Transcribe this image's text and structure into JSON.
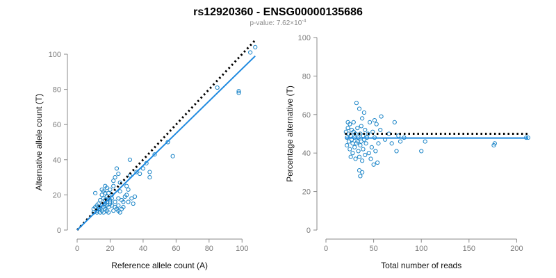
{
  "figure": {
    "title": "rs12920360 - ENSG00000135686",
    "subtitle_prefix": "p-value: 7.62×10",
    "subtitle_exponent": "-4"
  },
  "colors": {
    "points": "#1a84c7",
    "fit_line": "#1f8ae0",
    "reference_line": "#000000",
    "axis": "#8a8a8a",
    "tick_text": "#7a7a7a"
  },
  "chart_data": [
    {
      "type": "scatter",
      "name": "left",
      "xlabel": "Reference allele count (A)",
      "ylabel": "Alternative allele count (T)",
      "xlim": [
        0,
        110
      ],
      "ylim": [
        0,
        100
      ],
      "xticks": [
        0,
        20,
        40,
        60,
        80,
        100
      ],
      "yticks": [
        0,
        20,
        40,
        60,
        80,
        100
      ],
      "reference_line": {
        "style": "dotted",
        "points": [
          [
            0,
            0
          ],
          [
            108,
            108
          ]
        ]
      },
      "fit_line": {
        "style": "solid",
        "points": [
          [
            0,
            0
          ],
          [
            108,
            99
          ]
        ]
      },
      "points": [
        [
          10,
          10
        ],
        [
          10,
          12
        ],
        [
          11,
          13
        ],
        [
          11,
          21
        ],
        [
          12,
          11
        ],
        [
          12,
          14
        ],
        [
          12,
          10
        ],
        [
          13,
          13
        ],
        [
          13,
          12
        ],
        [
          13,
          15
        ],
        [
          14,
          10
        ],
        [
          14,
          12
        ],
        [
          14,
          17
        ],
        [
          15,
          11
        ],
        [
          15,
          14
        ],
        [
          15,
          20
        ],
        [
          15,
          23
        ],
        [
          16,
          10
        ],
        [
          16,
          13
        ],
        [
          16,
          18
        ],
        [
          16,
          22
        ],
        [
          17,
          12
        ],
        [
          17,
          15
        ],
        [
          17,
          17
        ],
        [
          17,
          21
        ],
        [
          17,
          25
        ],
        [
          18,
          11
        ],
        [
          18,
          14
        ],
        [
          18,
          16
        ],
        [
          18,
          19
        ],
        [
          18,
          24
        ],
        [
          19,
          10
        ],
        [
          19,
          13
        ],
        [
          19,
          18
        ],
        [
          19,
          21
        ],
        [
          20,
          15
        ],
        [
          20,
          16
        ],
        [
          20,
          17
        ],
        [
          20,
          23
        ],
        [
          21,
          14
        ],
        [
          21,
          18
        ],
        [
          21,
          20
        ],
        [
          22,
          11
        ],
        [
          22,
          25
        ],
        [
          22,
          28
        ],
        [
          23,
          13
        ],
        [
          23,
          16
        ],
        [
          23,
          30
        ],
        [
          24,
          12
        ],
        [
          24,
          35
        ],
        [
          25,
          11
        ],
        [
          25,
          14
        ],
        [
          25,
          18
        ],
        [
          25,
          32
        ],
        [
          26,
          10
        ],
        [
          26,
          22
        ],
        [
          26,
          27
        ],
        [
          27,
          12
        ],
        [
          27,
          17
        ],
        [
          28,
          13
        ],
        [
          28,
          16
        ],
        [
          29,
          19
        ],
        [
          30,
          20
        ],
        [
          30,
          25
        ],
        [
          31,
          16
        ],
        [
          31,
          23
        ],
        [
          32,
          31
        ],
        [
          32,
          40
        ],
        [
          33,
          18
        ],
        [
          34,
          15
        ],
        [
          35,
          19
        ],
        [
          36,
          33
        ],
        [
          38,
          32
        ],
        [
          40,
          35
        ],
        [
          42,
          38
        ],
        [
          44,
          30
        ],
        [
          44,
          33
        ],
        [
          47,
          43
        ],
        [
          55,
          50
        ],
        [
          58,
          42
        ],
        [
          85,
          81
        ],
        [
          98,
          78
        ],
        [
          98,
          79
        ],
        [
          105,
          101
        ],
        [
          108,
          104
        ]
      ]
    },
    {
      "type": "scatter",
      "name": "right",
      "xlabel": "Total number of reads",
      "ylabel": "Percentage alternative (T)",
      "xlim": [
        0,
        215
      ],
      "ylim": [
        0,
        100
      ],
      "xticks": [
        0,
        50,
        100,
        150,
        200
      ],
      "yticks": [
        0,
        20,
        40,
        60,
        80,
        100
      ],
      "reference_line": {
        "style": "dotted",
        "points": [
          [
            20,
            50
          ],
          [
            212,
            50
          ]
        ]
      },
      "fit_line": {
        "style": "solid",
        "points": [
          [
            20,
            47.8
          ],
          [
            212,
            47.8
          ]
        ]
      },
      "points": [
        [
          21,
          51
        ],
        [
          22,
          48
        ],
        [
          22,
          44
        ],
        [
          23,
          53
        ],
        [
          23,
          56
        ],
        [
          24,
          50
        ],
        [
          24,
          46
        ],
        [
          25,
          42
        ],
        [
          25,
          55
        ],
        [
          26,
          49
        ],
        [
          26,
          38
        ],
        [
          27,
          52
        ],
        [
          27,
          47
        ],
        [
          28,
          45
        ],
        [
          28,
          40
        ],
        [
          29,
          51
        ],
        [
          29,
          56
        ],
        [
          30,
          48
        ],
        [
          30,
          43
        ],
        [
          31,
          37
        ],
        [
          31,
          50
        ],
        [
          32,
          66
        ],
        [
          32,
          45
        ],
        [
          33,
          46
        ],
        [
          33,
          53
        ],
        [
          34,
          41
        ],
        [
          34,
          48
        ],
        [
          35,
          31
        ],
        [
          35,
          38
        ],
        [
          35,
          63
        ],
        [
          36,
          50
        ],
        [
          36,
          44
        ],
        [
          36,
          28
        ],
        [
          37,
          54
        ],
        [
          37,
          46
        ],
        [
          38,
          36
        ],
        [
          38,
          58
        ],
        [
          38,
          30
        ],
        [
          39,
          42
        ],
        [
          39,
          49
        ],
        [
          40,
          47
        ],
        [
          40,
          61
        ],
        [
          41,
          52
        ],
        [
          41,
          39
        ],
        [
          42,
          45
        ],
        [
          43,
          48
        ],
        [
          44,
          50
        ],
        [
          45,
          40
        ],
        [
          46,
          56
        ],
        [
          47,
          37
        ],
        [
          48,
          43
        ],
        [
          49,
          51
        ],
        [
          50,
          34
        ],
        [
          51,
          57
        ],
        [
          51,
          48
        ],
        [
          52,
          41
        ],
        [
          53,
          55
        ],
        [
          54,
          35
        ],
        [
          55,
          45
        ],
        [
          57,
          52
        ],
        [
          58,
          59
        ],
        [
          62,
          47
        ],
        [
          66,
          50
        ],
        [
          69,
          45
        ],
        [
          72,
          56
        ],
        [
          74,
          41
        ],
        [
          76,
          49
        ],
        [
          78,
          46
        ],
        [
          82,
          48
        ],
        [
          100,
          41
        ],
        [
          104,
          46
        ],
        [
          176,
          44
        ],
        [
          177,
          45
        ],
        [
          210,
          48
        ],
        [
          212,
          48
        ]
      ]
    }
  ]
}
